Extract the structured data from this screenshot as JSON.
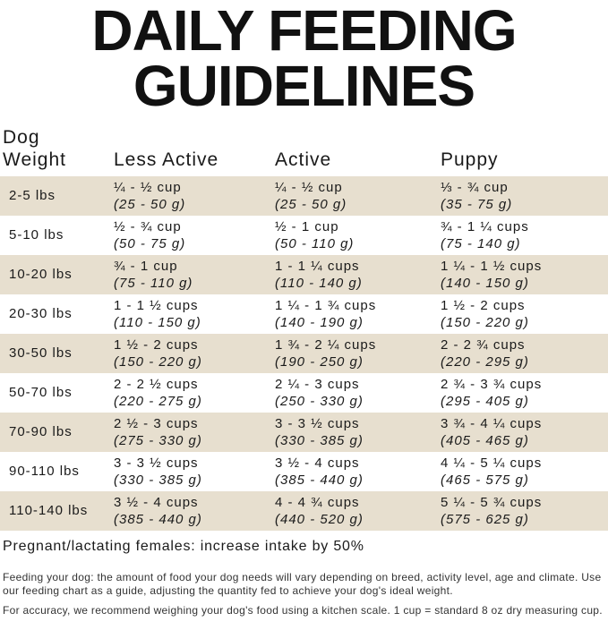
{
  "title": [
    "DAILY FEEDING",
    "GUIDELINES"
  ],
  "header": [
    "Dog Weight",
    "Less Active",
    "Active",
    "Puppy"
  ],
  "rows": [
    {
      "weight": "2-5 lbs",
      "cells": [
        [
          "¼ - ½ cup",
          "(25 - 50 g)"
        ],
        [
          "¼ - ½ cup",
          "(25 - 50 g)"
        ],
        [
          "⅓ - ¾ cup",
          "(35 - 75 g)"
        ]
      ]
    },
    {
      "weight": "5-10 lbs",
      "cells": [
        [
          "½ - ¾ cup",
          "(50 - 75 g)"
        ],
        [
          "½ - 1 cup",
          "(50 - 110 g)"
        ],
        [
          "¾ - 1 ¼ cups",
          "(75 - 140 g)"
        ]
      ]
    },
    {
      "weight": "10-20 lbs",
      "cells": [
        [
          "¾ - 1 cup",
          "(75 - 110 g)"
        ],
        [
          "1 - 1 ¼ cups",
          "(110 - 140 g)"
        ],
        [
          "1 ¼ - 1 ½ cups",
          "(140 - 150 g)"
        ]
      ]
    },
    {
      "weight": "20-30 lbs",
      "cells": [
        [
          "1 - 1 ½ cups",
          "(110 - 150 g)"
        ],
        [
          "1 ¼ - 1 ¾ cups",
          "(140 - 190 g)"
        ],
        [
          "1 ½ - 2 cups",
          "(150 - 220 g)"
        ]
      ]
    },
    {
      "weight": "30-50 lbs",
      "cells": [
        [
          "1 ½ - 2 cups",
          "(150 - 220 g)"
        ],
        [
          "1 ¾ - 2 ¼ cups",
          "(190 - 250 g)"
        ],
        [
          "2 - 2 ¾ cups",
          "(220 - 295 g)"
        ]
      ]
    },
    {
      "weight": "50-70 lbs",
      "cells": [
        [
          "2 - 2 ½ cups",
          "(220 - 275 g)"
        ],
        [
          "2 ¼ - 3 cups",
          "(250 - 330 g)"
        ],
        [
          "2 ¾ - 3 ¾ cups",
          "(295 - 405 g)"
        ]
      ]
    },
    {
      "weight": "70-90 lbs",
      "cells": [
        [
          "2 ½ - 3 cups",
          "(275 - 330 g)"
        ],
        [
          "3 - 3 ½ cups",
          "(330 - 385 g)"
        ],
        [
          "3 ¾ - 4 ¼ cups",
          "(405 - 465 g)"
        ]
      ]
    },
    {
      "weight": "90-110 lbs",
      "cells": [
        [
          "3 - 3 ½ cups",
          "(330 - 385 g)"
        ],
        [
          "3 ½ - 4 cups",
          "(385 - 440 g)"
        ],
        [
          "4 ¼ - 5 ¼ cups",
          "(465 - 575 g)"
        ]
      ]
    },
    {
      "weight": "110-140 lbs",
      "cells": [
        [
          "3 ½ - 4 cups",
          "(385 - 440 g)"
        ],
        [
          "4 - 4 ¾ cups",
          "(440 - 520 g)"
        ],
        [
          "5 ¼ - 5 ¾ cups",
          "(575 - 625 g)"
        ]
      ]
    }
  ],
  "note": "Pregnant/lactating females: increase intake by 50%",
  "footnotes": [
    "Feeding your dog: the amount of food your dog needs will vary depending on breed, activity level, age and climate. Use our feeding chart as a guide, adjusting the quantity fed to achieve your dog's ideal weight.",
    "For accuracy, we recommend weighing your dog's food using a kitchen scale. 1 cup = standard 8 oz dry measuring cup."
  ]
}
